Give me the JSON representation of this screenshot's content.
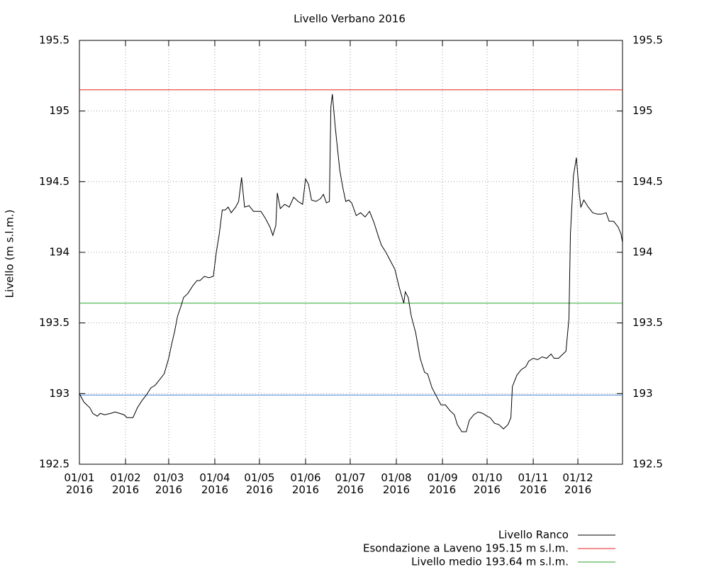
{
  "chart_data": {
    "type": "line",
    "title": "Livello Verbano 2016",
    "ylabel": "Livello (m s.l.m.)",
    "ylim": [
      192.5,
      195.5
    ],
    "yticks": [
      192.5,
      193,
      193.5,
      194,
      194.5,
      195,
      195.5
    ],
    "xlim": [
      "2016-01-01",
      "2016-12-31"
    ],
    "xticks": [
      {
        "value": "2016-01-01",
        "label": "01/01\n2016"
      },
      {
        "value": "2016-02-01",
        "label": "01/02\n2016"
      },
      {
        "value": "2016-03-01",
        "label": "01/03\n2016"
      },
      {
        "value": "2016-04-01",
        "label": "01/04\n2016"
      },
      {
        "value": "2016-05-01",
        "label": "01/05\n2016"
      },
      {
        "value": "2016-06-01",
        "label": "01/06\n2016"
      },
      {
        "value": "2016-07-01",
        "label": "01/07\n2016"
      },
      {
        "value": "2016-08-01",
        "label": "01/08\n2016"
      },
      {
        "value": "2016-09-01",
        "label": "01/09\n2016"
      },
      {
        "value": "2016-10-01",
        "label": "01/10\n2016"
      },
      {
        "value": "2016-11-01",
        "label": "01/11\n2016"
      },
      {
        "value": "2016-12-01",
        "label": "01/12\n2016"
      }
    ],
    "grid": true,
    "legend": "bottom-right",
    "x": [
      "2016-01-01",
      "2016-01-04",
      "2016-01-08",
      "2016-01-10",
      "2016-01-13",
      "2016-01-15",
      "2016-01-18",
      "2016-01-22",
      "2016-01-25",
      "2016-01-28",
      "2016-01-31",
      "2016-02-02",
      "2016-02-06",
      "2016-02-09",
      "2016-02-12",
      "2016-02-15",
      "2016-02-18",
      "2016-02-21",
      "2016-02-24",
      "2016-02-27",
      "2016-03-01",
      "2016-03-03",
      "2016-03-05",
      "2016-03-07",
      "2016-03-09",
      "2016-03-11",
      "2016-03-14",
      "2016-03-17",
      "2016-03-20",
      "2016-03-22",
      "2016-03-25",
      "2016-03-28",
      "2016-03-31",
      "2016-04-02",
      "2016-04-04",
      "2016-04-06",
      "2016-04-08",
      "2016-04-10",
      "2016-04-12",
      "2016-04-15",
      "2016-04-17",
      "2016-04-19",
      "2016-04-21",
      "2016-04-24",
      "2016-04-27",
      "2016-04-30",
      "2016-05-02",
      "2016-05-05",
      "2016-05-08",
      "2016-05-10",
      "2016-05-12",
      "2016-05-13",
      "2016-05-15",
      "2016-05-18",
      "2016-05-21",
      "2016-05-24",
      "2016-05-27",
      "2016-05-30",
      "2016-06-01",
      "2016-06-03",
      "2016-06-05",
      "2016-06-08",
      "2016-06-11",
      "2016-06-13",
      "2016-06-15",
      "2016-06-17",
      "2016-06-18",
      "2016-06-19",
      "2016-06-21",
      "2016-06-24",
      "2016-06-26",
      "2016-06-28",
      "2016-06-30",
      "2016-07-02",
      "2016-07-05",
      "2016-07-08",
      "2016-07-11",
      "2016-07-14",
      "2016-07-17",
      "2016-07-20",
      "2016-07-22",
      "2016-07-25",
      "2016-07-28",
      "2016-07-31",
      "2016-08-03",
      "2016-08-06",
      "2016-08-07",
      "2016-08-09",
      "2016-08-11",
      "2016-08-14",
      "2016-08-17",
      "2016-08-20",
      "2016-08-22",
      "2016-08-25",
      "2016-08-28",
      "2016-08-31",
      "2016-09-03",
      "2016-09-06",
      "2016-09-09",
      "2016-09-11",
      "2016-09-14",
      "2016-09-17",
      "2016-09-19",
      "2016-09-22",
      "2016-09-25",
      "2016-09-28",
      "2016-10-01",
      "2016-10-03",
      "2016-10-06",
      "2016-10-09",
      "2016-10-12",
      "2016-10-15",
      "2016-10-17",
      "2016-10-18",
      "2016-10-21",
      "2016-10-24",
      "2016-10-27",
      "2016-10-29",
      "2016-11-01",
      "2016-11-04",
      "2016-11-07",
      "2016-11-10",
      "2016-11-13",
      "2016-11-15",
      "2016-11-18",
      "2016-11-21",
      "2016-11-23",
      "2016-11-25",
      "2016-11-26",
      "2016-11-28",
      "2016-11-30",
      "2016-12-02",
      "2016-12-03",
      "2016-12-05",
      "2016-12-08",
      "2016-12-11",
      "2016-12-14",
      "2016-12-17",
      "2016-12-20",
      "2016-12-22",
      "2016-12-25",
      "2016-12-28",
      "2016-12-30",
      "2016-12-31"
    ],
    "series": [
      {
        "name": "Livello Ranco",
        "color": "#000000",
        "values": [
          193.0,
          192.94,
          192.9,
          192.86,
          192.84,
          192.86,
          192.85,
          192.86,
          192.87,
          192.86,
          192.85,
          192.83,
          192.83,
          192.9,
          192.95,
          192.99,
          193.04,
          193.06,
          193.1,
          193.14,
          193.25,
          193.35,
          193.44,
          193.55,
          193.61,
          193.68,
          193.71,
          193.76,
          193.8,
          193.8,
          193.83,
          193.82,
          193.83,
          194.0,
          194.13,
          194.3,
          194.3,
          194.32,
          194.28,
          194.32,
          194.36,
          194.53,
          194.32,
          194.33,
          194.29,
          194.29,
          194.29,
          194.24,
          194.18,
          194.12,
          194.19,
          194.42,
          194.31,
          194.34,
          194.32,
          194.39,
          194.36,
          194.34,
          194.52,
          194.48,
          194.37,
          194.36,
          194.38,
          194.41,
          194.35,
          194.36,
          195.03,
          195.12,
          194.88,
          194.58,
          194.46,
          194.36,
          194.37,
          194.35,
          194.26,
          194.28,
          194.25,
          194.29,
          194.21,
          194.11,
          194.05,
          194.0,
          193.94,
          193.88,
          193.75,
          193.64,
          193.72,
          193.68,
          193.55,
          193.43,
          193.25,
          193.15,
          193.14,
          193.04,
          192.98,
          192.92,
          192.92,
          192.88,
          192.85,
          192.78,
          192.73,
          192.73,
          192.81,
          192.85,
          192.87,
          192.86,
          192.84,
          192.83,
          192.79,
          192.78,
          192.75,
          192.78,
          192.83,
          193.05,
          193.13,
          193.17,
          193.19,
          193.23,
          193.25,
          193.24,
          193.26,
          193.25,
          193.28,
          193.25,
          193.25,
          193.28,
          193.3,
          193.53,
          194.13,
          194.54,
          194.67,
          194.41,
          194.32,
          194.37,
          194.32,
          194.28,
          194.27,
          194.27,
          194.28,
          194.22,
          194.22,
          194.18,
          194.13,
          194.07
        ]
      }
    ],
    "reference_lines": [
      {
        "name": "Esondazione a Laveno 195.15 m s.l.m.",
        "value": 195.15,
        "color": "#e8211f"
      },
      {
        "name": "Livello medio 193.64 m s.l.m.",
        "value": 193.64,
        "color": "#2ea52e"
      },
      {
        "value": 192.99,
        "color": "#4a86d6"
      }
    ]
  }
}
